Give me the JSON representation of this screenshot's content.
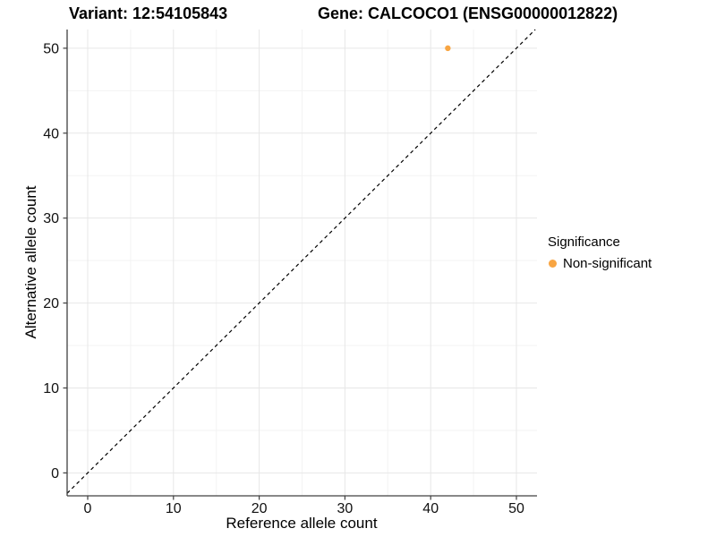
{
  "chart_data": {
    "type": "scatter",
    "titles": {
      "left": "Variant: 12:54105843",
      "right": "Gene: CALCOCO1 (ENSG00000012822)"
    },
    "xlabel": "Reference allele count",
    "ylabel": "Alternative allele count",
    "xlim": [
      -2.4,
      52.4
    ],
    "ylim": [
      -2.7,
      52.2
    ],
    "x_ticks": [
      0,
      10,
      20,
      30,
      40,
      50
    ],
    "y_ticks": [
      0,
      10,
      20,
      30,
      40,
      50
    ],
    "x_minor_ticks": [
      5,
      15,
      25,
      35,
      45
    ],
    "y_minor_ticks": [
      5,
      15,
      25,
      35,
      45
    ],
    "grid": "major+minor",
    "points": [
      {
        "x": 42,
        "y": 50,
        "group": "Non-significant"
      }
    ],
    "reference_line": {
      "type": "identity",
      "style": "dashed",
      "color": "#000000"
    },
    "legend": {
      "title": "Significance",
      "position": "right",
      "entries": [
        {
          "label": "Non-significant",
          "color": "#F8A542",
          "marker": "circle"
        }
      ]
    },
    "colors": {
      "point": "#F8A542",
      "grid_major": "#E7E7E7",
      "grid_minor": "#F3F3F3",
      "axis_line": "#404040",
      "tick_text": "#111111"
    }
  }
}
